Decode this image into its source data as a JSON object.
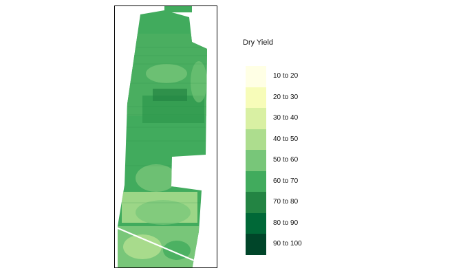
{
  "legend": {
    "title": "Dry Yield",
    "classes": [
      {
        "label": "10 to 20",
        "color": "#ffffe5"
      },
      {
        "label": "20 to 30",
        "color": "#f7fcb9"
      },
      {
        "label": "30 to 40",
        "color": "#d9f0a3"
      },
      {
        "label": "40 to 50",
        "color": "#addd8e"
      },
      {
        "label": "50 to 60",
        "color": "#78c679"
      },
      {
        "label": "60 to 70",
        "color": "#41ab5d"
      },
      {
        "label": "70 to 80",
        "color": "#238443"
      },
      {
        "label": "80 to 90",
        "color": "#006837"
      },
      {
        "label": "90 to 100",
        "color": "#004529"
      }
    ]
  }
}
